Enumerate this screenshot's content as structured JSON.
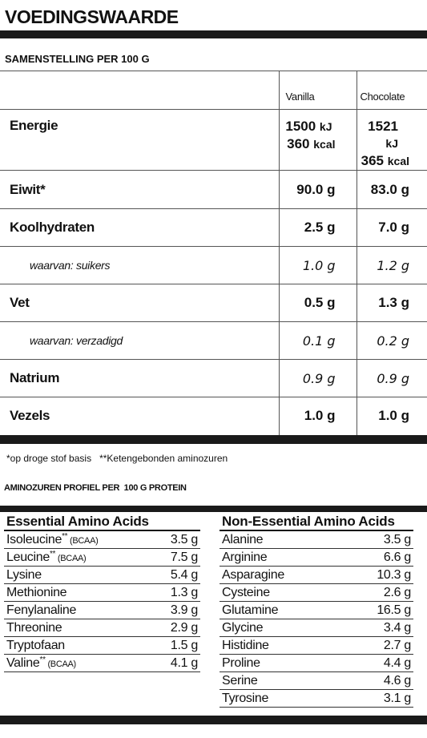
{
  "title": "VOEDINGSWAARDE",
  "composition": {
    "heading": "SAMENSTELLING PER 100 G",
    "columns": [
      "Vanilla",
      "Chocolate"
    ],
    "rows": [
      {
        "label": "Energie",
        "vanilla": [
          "1500",
          "kJ",
          "360",
          "kcal"
        ],
        "chocolate": [
          "1521",
          "kJ",
          "365",
          "kcal"
        ]
      },
      {
        "label": "Eiwit*",
        "vanilla": "90.0 g",
        "chocolate": "83.0 g"
      },
      {
        "label": "Koolhydraten",
        "vanilla": "2.5 g",
        "chocolate": "7.0 g"
      },
      {
        "label": "waarvan: suikers",
        "vanilla": "1.0 g",
        "chocolate": "1.2 g"
      },
      {
        "label": "Vet",
        "vanilla": "0.5 g",
        "chocolate": "1.3 g"
      },
      {
        "label": "waarvan: verzadigd",
        "vanilla": "0.1 g",
        "chocolate": "0.2 g"
      },
      {
        "label": "Natrium",
        "vanilla": "0.9 g",
        "chocolate": "0.9 g"
      },
      {
        "label": "Vezels",
        "vanilla": "1.0 g",
        "chocolate": "1.0 g"
      }
    ]
  },
  "footnote": "*op droge stof basis   **Ketengebonden aminozuren",
  "amino_title": "AMINOZUREN PROFIEL PER  100 G PROTEIN",
  "essential": {
    "heading": "Essential Amino Acids",
    "items": [
      {
        "name": "Isoleucine",
        "stars": "**",
        "note": "(BCAA)",
        "value": "3.5 g"
      },
      {
        "name": "Leucine",
        "stars": "**",
        "note": "(BCAA)",
        "value": "7.5 g"
      },
      {
        "name": "Lysine",
        "stars": "",
        "note": "",
        "value": "5.4 g"
      },
      {
        "name": "Methionine",
        "stars": "",
        "note": "",
        "value": "1.3 g"
      },
      {
        "name": "Fenylanaline",
        "stars": "",
        "note": "",
        "value": "3.9 g"
      },
      {
        "name": "Threonine",
        "stars": "",
        "note": "",
        "value": "2.9 g"
      },
      {
        "name": "Tryptofaan",
        "stars": "",
        "note": "",
        "value": "1.5 g"
      },
      {
        "name": "Valine",
        "stars": "**",
        "note": "(BCAA)",
        "value": "4.1 g"
      }
    ]
  },
  "non_essential": {
    "heading": "Non-Essential Amino Acids",
    "items": [
      {
        "name": "Alanine",
        "value": "3.5 g"
      },
      {
        "name": "Arginine",
        "value": "6.6 g"
      },
      {
        "name": "Asparagine",
        "value": "10.3 g"
      },
      {
        "name": "Cysteine",
        "value": "2.6 g"
      },
      {
        "name": "Glutamine",
        "value": "16.5 g"
      },
      {
        "name": "Glycine",
        "value": "3.4 g"
      },
      {
        "name": "Histidine",
        "value": "2.7 g"
      },
      {
        "name": "Proline",
        "value": "4.4 g"
      },
      {
        "name": "Serine",
        "value": "4.6 g"
      },
      {
        "name": "Tyrosine",
        "value": "3.1 g"
      }
    ]
  },
  "colors": {
    "bar": "#1a1a1a",
    "text": "#111111"
  }
}
